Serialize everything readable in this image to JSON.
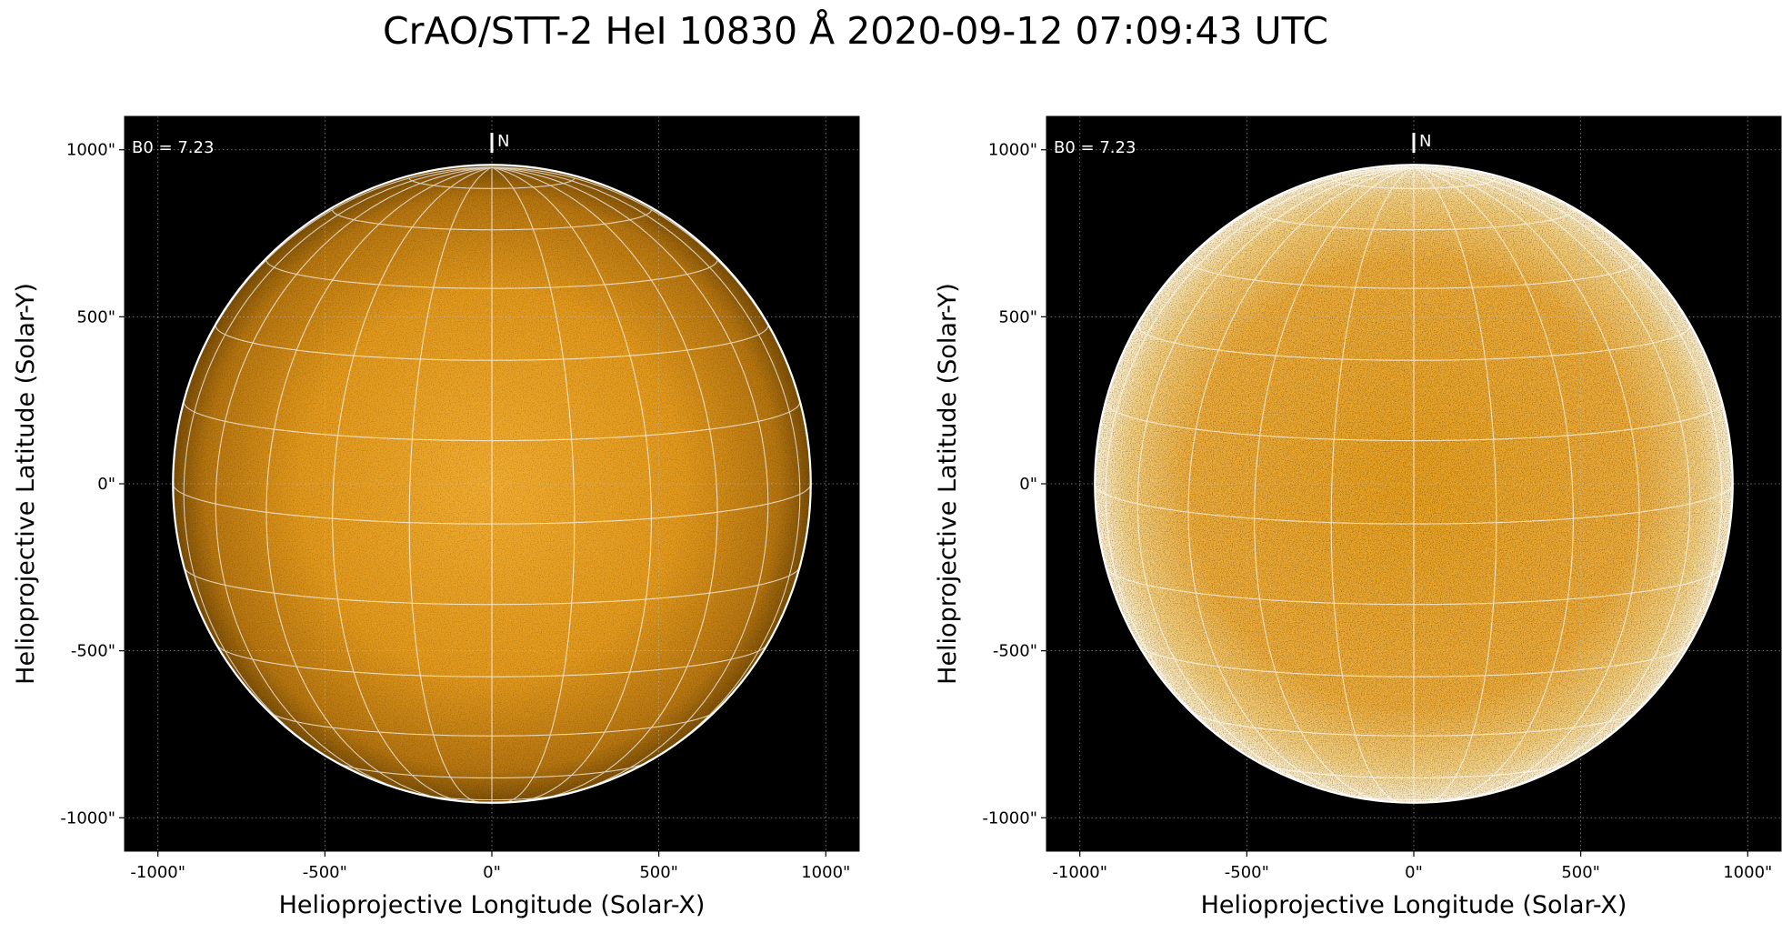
{
  "figure": {
    "title": "CrAO/STT-2 HeI 10830 Å 2020-09-12 07:09:43 UTC"
  },
  "colors": {
    "background": "#000000",
    "disk_center": "#f2aa2a",
    "disk_edge": "#8a5a08",
    "enhanced_center": "#e89e18",
    "enhanced_edge": "#fbe6b6",
    "grid": "#ffffff",
    "limb": "#ffffff"
  },
  "panels": [
    {
      "name": "original",
      "b0_label": "B0 = 7.23",
      "north_label": "N",
      "xlabel": "Helioprojective Longitude (Solar-X)",
      "ylabel": "Helioprojective Latitude (Solar-Y)",
      "xticks": [
        "-1000\"",
        "-500\"",
        "0\"",
        "500\"",
        "1000\""
      ],
      "yticks": [
        "1000\"",
        "500\"",
        "0\"",
        "-500\"",
        "-1000\""
      ]
    },
    {
      "name": "enhanced",
      "b0_label": "B0 = 7.23",
      "north_label": "N",
      "xlabel": "Helioprojective Longitude (Solar-X)",
      "ylabel": "Helioprojective Latitude (Solar-Y)",
      "xticks": [
        "-1000\"",
        "-500\"",
        "0\"",
        "500\"",
        "1000\""
      ],
      "yticks": [
        "1000\"",
        "500\"",
        "0\"",
        "-500\"",
        "-1000\""
      ]
    }
  ],
  "axes": {
    "tick_values": [
      -1000,
      -500,
      0,
      500,
      1000
    ],
    "xlim": [
      -1100,
      1100
    ],
    "ylim": [
      -1100,
      1100
    ],
    "solar_radius_arcsec": 955,
    "b0_deg": 7.23,
    "lat_lines_deg": [
      -75,
      -60,
      -45,
      -30,
      -15,
      0,
      15,
      30,
      45,
      60,
      75
    ],
    "lon_lines_deg": [
      -90,
      -75,
      -60,
      -45,
      -30,
      -15,
      0,
      15,
      30,
      45,
      60,
      75,
      90
    ]
  }
}
